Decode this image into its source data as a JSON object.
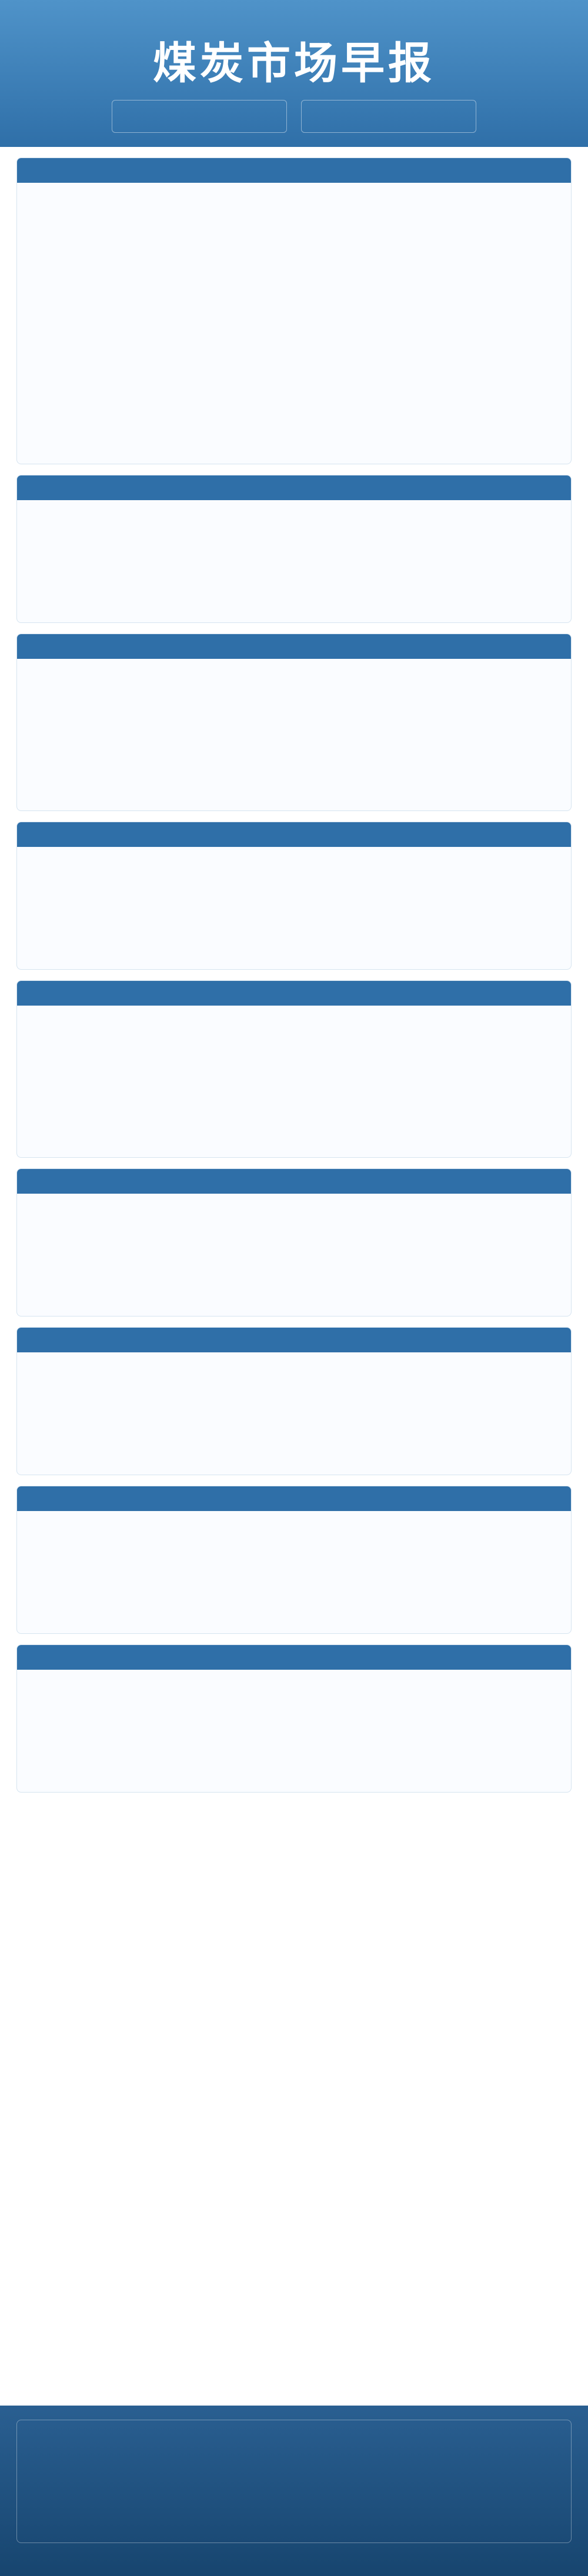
{
  "header": {
    "title": "煤炭市场早报",
    "org_left": "",
    "org_right": ""
  },
  "summary": {
    "title": "",
    "text": ""
  },
  "sections": [
    {
      "title": "",
      "text": ""
    },
    {
      "title": "",
      "text": ""
    },
    {
      "title": "",
      "text": ""
    },
    {
      "title": "",
      "text": ""
    },
    {
      "title": "",
      "text": ""
    },
    {
      "title": "",
      "text": ""
    },
    {
      "title": "",
      "text": ""
    },
    {
      "title": "",
      "text": ""
    }
  ],
  "footer": {
    "left": "",
    "right": ""
  }
}
